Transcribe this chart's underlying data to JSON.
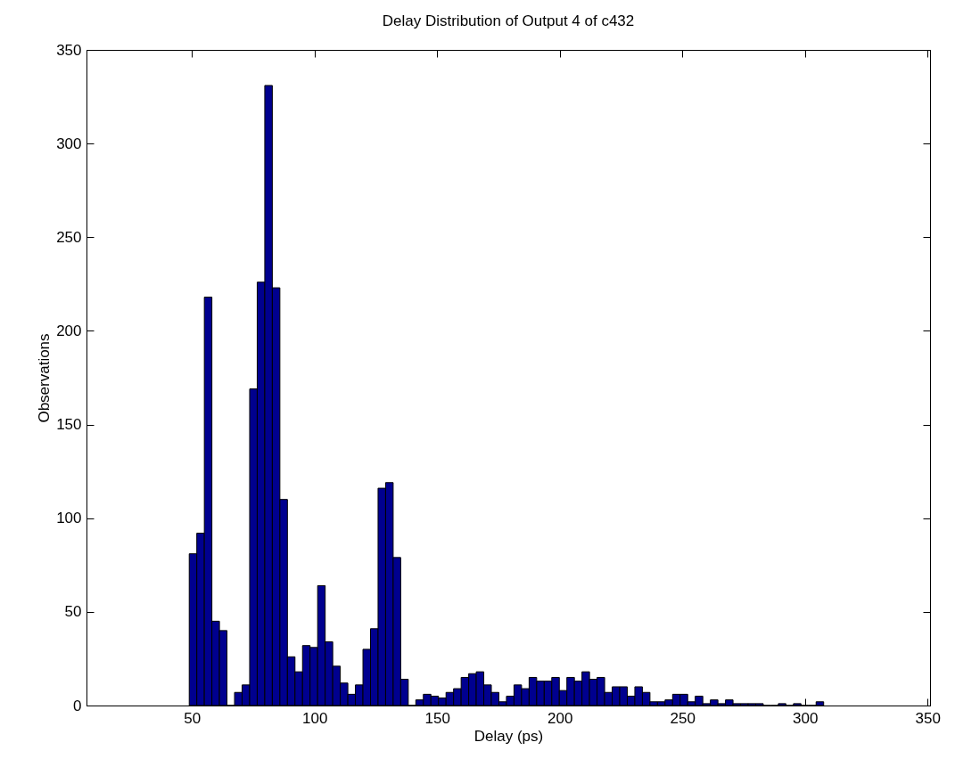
{
  "chart_data": {
    "type": "histogram",
    "title": "Delay Distribution of Output 4 of c432",
    "xlabel": "Delay (ps)",
    "ylabel": "Observations",
    "color": "#00008f",
    "bins": [
      48.9,
      51.98,
      55.06,
      58.14,
      61.22,
      64.3,
      67.38,
      70.46,
      73.54,
      76.62,
      79.7,
      82.78,
      85.86,
      88.94,
      92.02,
      95.1,
      98.18,
      101.26,
      104.34,
      107.42,
      110.5,
      113.58,
      116.66,
      119.74,
      122.82,
      125.9,
      128.98,
      132.06,
      135.14,
      138.22,
      141.3,
      144.38,
      147.46,
      150.54,
      153.62,
      156.7,
      159.78,
      162.86,
      165.94,
      169.02,
      172.1,
      175.18,
      178.26,
      181.34,
      184.42,
      187.5,
      190.58,
      193.66,
      196.74,
      199.82,
      202.9,
      205.98,
      209.06,
      212.14,
      215.22,
      218.3,
      221.38,
      224.46,
      227.54,
      230.62,
      233.7,
      236.78,
      239.86,
      242.94,
      246.02,
      249.1,
      252.18,
      255.26,
      258.34,
      261.42,
      264.5,
      267.58,
      270.66,
      273.74,
      276.82,
      279.9,
      282.98,
      286.06,
      289.14,
      292.22,
      295.3,
      298.38,
      301.46,
      304.54,
      307.62
    ],
    "values": [
      81,
      92,
      218,
      45,
      40,
      0,
      7,
      11,
      169,
      226,
      331,
      223,
      110,
      26,
      18,
      32,
      31,
      64,
      34,
      21,
      12,
      6,
      11,
      30,
      41,
      116,
      119,
      79,
      14,
      0,
      3,
      6,
      5,
      4,
      7,
      9,
      15,
      17,
      18,
      11,
      7,
      2,
      5,
      11,
      9,
      15,
      13,
      13,
      15,
      8,
      15,
      13,
      18,
      14,
      15,
      7,
      10,
      10,
      5,
      10,
      7,
      2,
      2,
      3,
      6,
      6,
      2,
      5,
      1,
      3,
      1,
      3,
      1,
      1,
      1,
      1,
      0,
      0,
      1,
      0,
      1,
      0,
      0,
      2
    ],
    "xlim": [
      7,
      351
    ],
    "xticks": [
      50,
      100,
      150,
      200,
      250,
      300,
      350
    ],
    "ylim": [
      0,
      350
    ],
    "yticks": [
      0,
      50,
      100,
      150,
      200,
      250,
      300,
      350
    ]
  }
}
